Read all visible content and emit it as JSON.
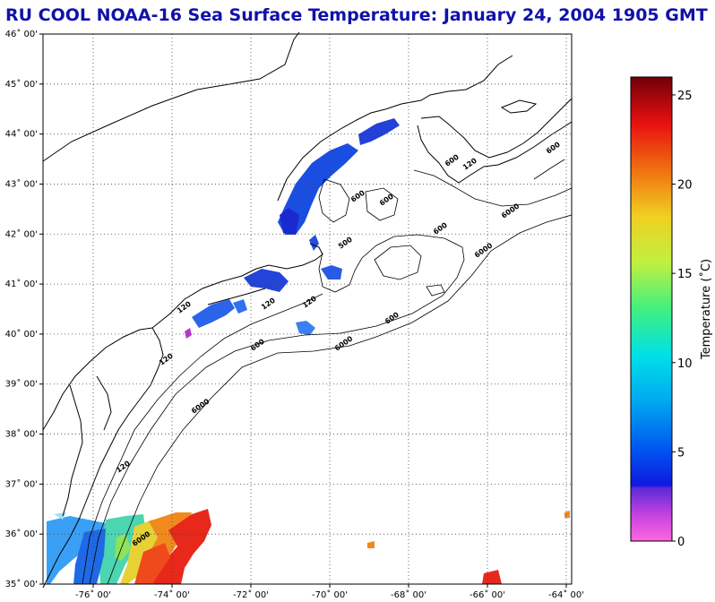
{
  "title": "RU COOL  NOAA-16  Sea Surface Temperature:  January 24, 2004 1905 GMT",
  "map": {
    "lat_labels": [
      "46˚ 00'",
      "45˚ 00'",
      "44˚ 00'",
      "43˚ 00'",
      "42˚ 00'",
      "41˚ 00'",
      "40˚ 00'",
      "39˚ 00'",
      "38˚ 00'",
      "37˚ 00'",
      "36˚ 00'",
      "35˚ 00'"
    ],
    "lon_labels": [
      "-76˚ 00'",
      "-74˚ 00'",
      "-72˚ 00'",
      "-70˚ 00'",
      "-68˚ 00'",
      "-66˚ 00'",
      "-64˚ 00'"
    ],
    "isobath_labels": [
      "600",
      "600",
      "120",
      "600",
      "500",
      "600",
      "6000",
      "600",
      "120",
      "6000",
      "120",
      "6000",
      "120",
      "600",
      "600",
      "6000",
      "120",
      "6000",
      "120"
    ],
    "colors": {
      "frame": "#000000",
      "grid": "#555555",
      "land": "#ffffff"
    }
  },
  "colorbar": {
    "label": "Temperature (˚C)",
    "ticks": [
      "0",
      "5",
      "10",
      "15",
      "20",
      "25"
    ],
    "range": [
      0,
      26
    ]
  }
}
